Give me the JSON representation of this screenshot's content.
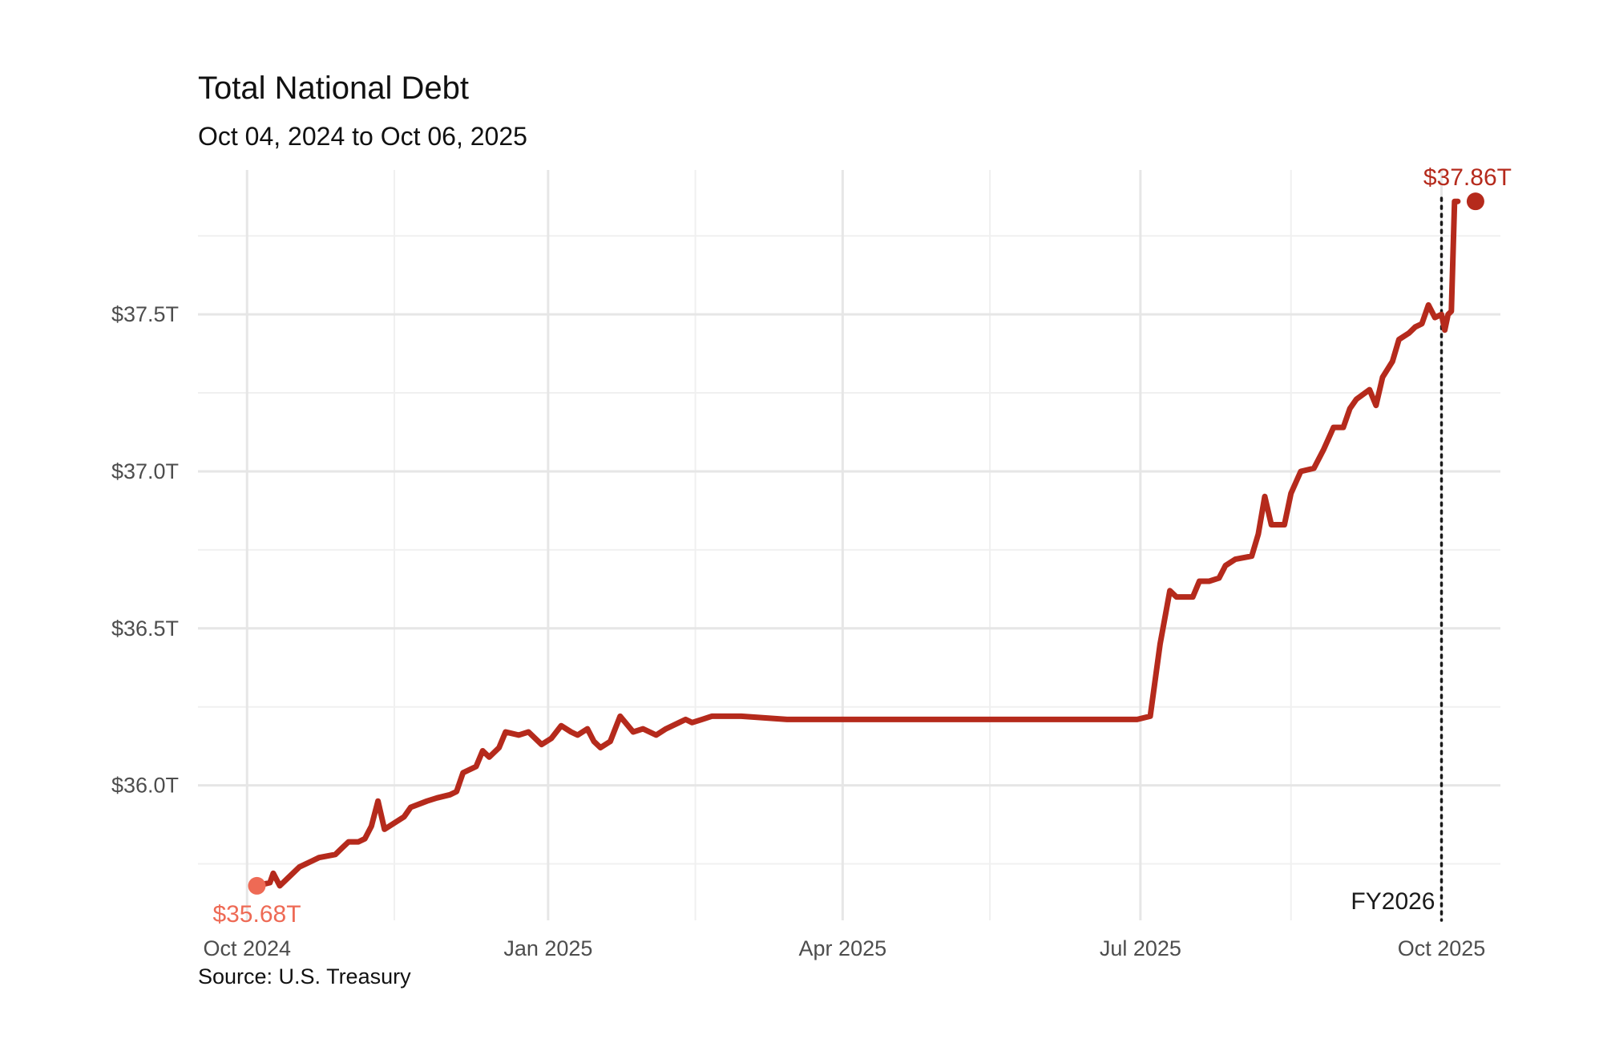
{
  "chart_data": {
    "type": "line",
    "title": "Total National Debt",
    "subtitle": "Oct 04, 2024 to Oct 06, 2025",
    "source": "Source: U.S. Treasury",
    "xlabel": "",
    "ylabel": "",
    "x_range": [
      "2024-09-16",
      "2025-10-19"
    ],
    "y_range": [
      35.57,
      37.96
    ],
    "y_unit": "trillion USD",
    "grid": true,
    "x_ticks": [
      {
        "date": "2024-10-01",
        "label": "Oct 2024"
      },
      {
        "date": "2025-01-01",
        "label": "Jan 2025"
      },
      {
        "date": "2025-04-01",
        "label": "Apr 2025"
      },
      {
        "date": "2025-07-01",
        "label": "Jul 2025"
      },
      {
        "date": "2025-10-01",
        "label": "Oct 2025"
      }
    ],
    "x_minor_ticks": [
      "2024-11-15",
      "2025-02-15",
      "2025-05-16",
      "2025-08-16"
    ],
    "y_ticks": [
      {
        "value": 36.0,
        "label": "$36.0T"
      },
      {
        "value": 36.5,
        "label": "$36.5T"
      },
      {
        "value": 37.0,
        "label": "$37.0T"
      },
      {
        "value": 37.5,
        "label": "$37.5T"
      }
    ],
    "y_minor_ticks": [
      35.75,
      36.25,
      36.75,
      37.25,
      37.75
    ],
    "series": [
      {
        "color": "#b52a1c",
        "points": [
          [
            "2024-10-04",
            35.68
          ],
          [
            "2024-10-08",
            35.69
          ],
          [
            "2024-10-09",
            35.72
          ],
          [
            "2024-10-11",
            35.68
          ],
          [
            "2024-10-14",
            35.71
          ],
          [
            "2024-10-17",
            35.74
          ],
          [
            "2024-10-21",
            35.76
          ],
          [
            "2024-10-23",
            35.77
          ],
          [
            "2024-10-28",
            35.78
          ],
          [
            "2024-10-30",
            35.8
          ],
          [
            "2024-11-01",
            35.82
          ],
          [
            "2024-11-04",
            35.82
          ],
          [
            "2024-11-06",
            35.83
          ],
          [
            "2024-11-08",
            35.87
          ],
          [
            "2024-11-10",
            35.95
          ],
          [
            "2024-11-12",
            35.86
          ],
          [
            "2024-11-15",
            35.88
          ],
          [
            "2024-11-18",
            35.9
          ],
          [
            "2024-11-20",
            35.93
          ],
          [
            "2024-11-25",
            35.95
          ],
          [
            "2024-11-28",
            35.96
          ],
          [
            "2024-12-02",
            35.97
          ],
          [
            "2024-12-04",
            35.98
          ],
          [
            "2024-12-06",
            36.04
          ],
          [
            "2024-12-10",
            36.06
          ],
          [
            "2024-12-12",
            36.11
          ],
          [
            "2024-12-14",
            36.09
          ],
          [
            "2024-12-17",
            36.12
          ],
          [
            "2024-12-19",
            36.17
          ],
          [
            "2024-12-23",
            36.16
          ],
          [
            "2024-12-26",
            36.17
          ],
          [
            "2024-12-30",
            36.13
          ],
          [
            "2025-01-02",
            36.15
          ],
          [
            "2025-01-05",
            36.19
          ],
          [
            "2025-01-08",
            36.17
          ],
          [
            "2025-01-10",
            36.16
          ],
          [
            "2025-01-13",
            36.18
          ],
          [
            "2025-01-15",
            36.14
          ],
          [
            "2025-01-17",
            36.12
          ],
          [
            "2025-01-20",
            36.14
          ],
          [
            "2025-01-23",
            36.22
          ],
          [
            "2025-01-27",
            36.17
          ],
          [
            "2025-01-30",
            36.18
          ],
          [
            "2025-02-03",
            36.16
          ],
          [
            "2025-02-06",
            36.18
          ],
          [
            "2025-02-10",
            36.2
          ],
          [
            "2025-02-12",
            36.21
          ],
          [
            "2025-02-14",
            36.2
          ],
          [
            "2025-02-17",
            36.21
          ],
          [
            "2025-02-20",
            36.22
          ],
          [
            "2025-03-01",
            36.22
          ],
          [
            "2025-03-15",
            36.21
          ],
          [
            "2025-04-01",
            36.21
          ],
          [
            "2025-05-01",
            36.21
          ],
          [
            "2025-06-01",
            36.21
          ],
          [
            "2025-06-30",
            36.21
          ],
          [
            "2025-07-04",
            36.22
          ],
          [
            "2025-07-07",
            36.45
          ],
          [
            "2025-07-10",
            36.62
          ],
          [
            "2025-07-12",
            36.6
          ],
          [
            "2025-07-17",
            36.6
          ],
          [
            "2025-07-19",
            36.65
          ],
          [
            "2025-07-22",
            36.65
          ],
          [
            "2025-07-25",
            36.66
          ],
          [
            "2025-07-27",
            36.7
          ],
          [
            "2025-07-30",
            36.72
          ],
          [
            "2025-08-04",
            36.73
          ],
          [
            "2025-08-06",
            36.8
          ],
          [
            "2025-08-08",
            36.92
          ],
          [
            "2025-08-10",
            36.83
          ],
          [
            "2025-08-14",
            36.83
          ],
          [
            "2025-08-16",
            36.93
          ],
          [
            "2025-08-19",
            37.0
          ],
          [
            "2025-08-23",
            37.01
          ],
          [
            "2025-08-26",
            37.07
          ],
          [
            "2025-08-29",
            37.14
          ],
          [
            "2025-09-01",
            37.14
          ],
          [
            "2025-09-03",
            37.2
          ],
          [
            "2025-09-05",
            37.23
          ],
          [
            "2025-09-09",
            37.26
          ],
          [
            "2025-09-11",
            37.21
          ],
          [
            "2025-09-13",
            37.3
          ],
          [
            "2025-09-16",
            37.35
          ],
          [
            "2025-09-18",
            37.42
          ],
          [
            "2025-09-21",
            37.44
          ],
          [
            "2025-09-23",
            37.46
          ],
          [
            "2025-09-25",
            37.47
          ],
          [
            "2025-09-27",
            37.53
          ],
          [
            "2025-09-29",
            37.49
          ],
          [
            "2025-10-01",
            37.5
          ],
          [
            "2025-10-02",
            37.45
          ],
          [
            "2025-10-03",
            37.5
          ],
          [
            "2025-10-04",
            37.51
          ],
          [
            "2025-10-05",
            37.86
          ],
          [
            "2025-10-06",
            37.86
          ]
        ]
      }
    ],
    "start_point": {
      "date": "2024-10-04",
      "value": 35.68,
      "label": "$35.68T",
      "color": "#ee6a55"
    },
    "end_point": {
      "date": "2025-10-06",
      "value": 37.86,
      "label": "$37.86T",
      "color": "#b52a1c"
    },
    "reference_line": {
      "date": "2025-10-01",
      "label": "FY2026",
      "style": "dotted"
    }
  }
}
